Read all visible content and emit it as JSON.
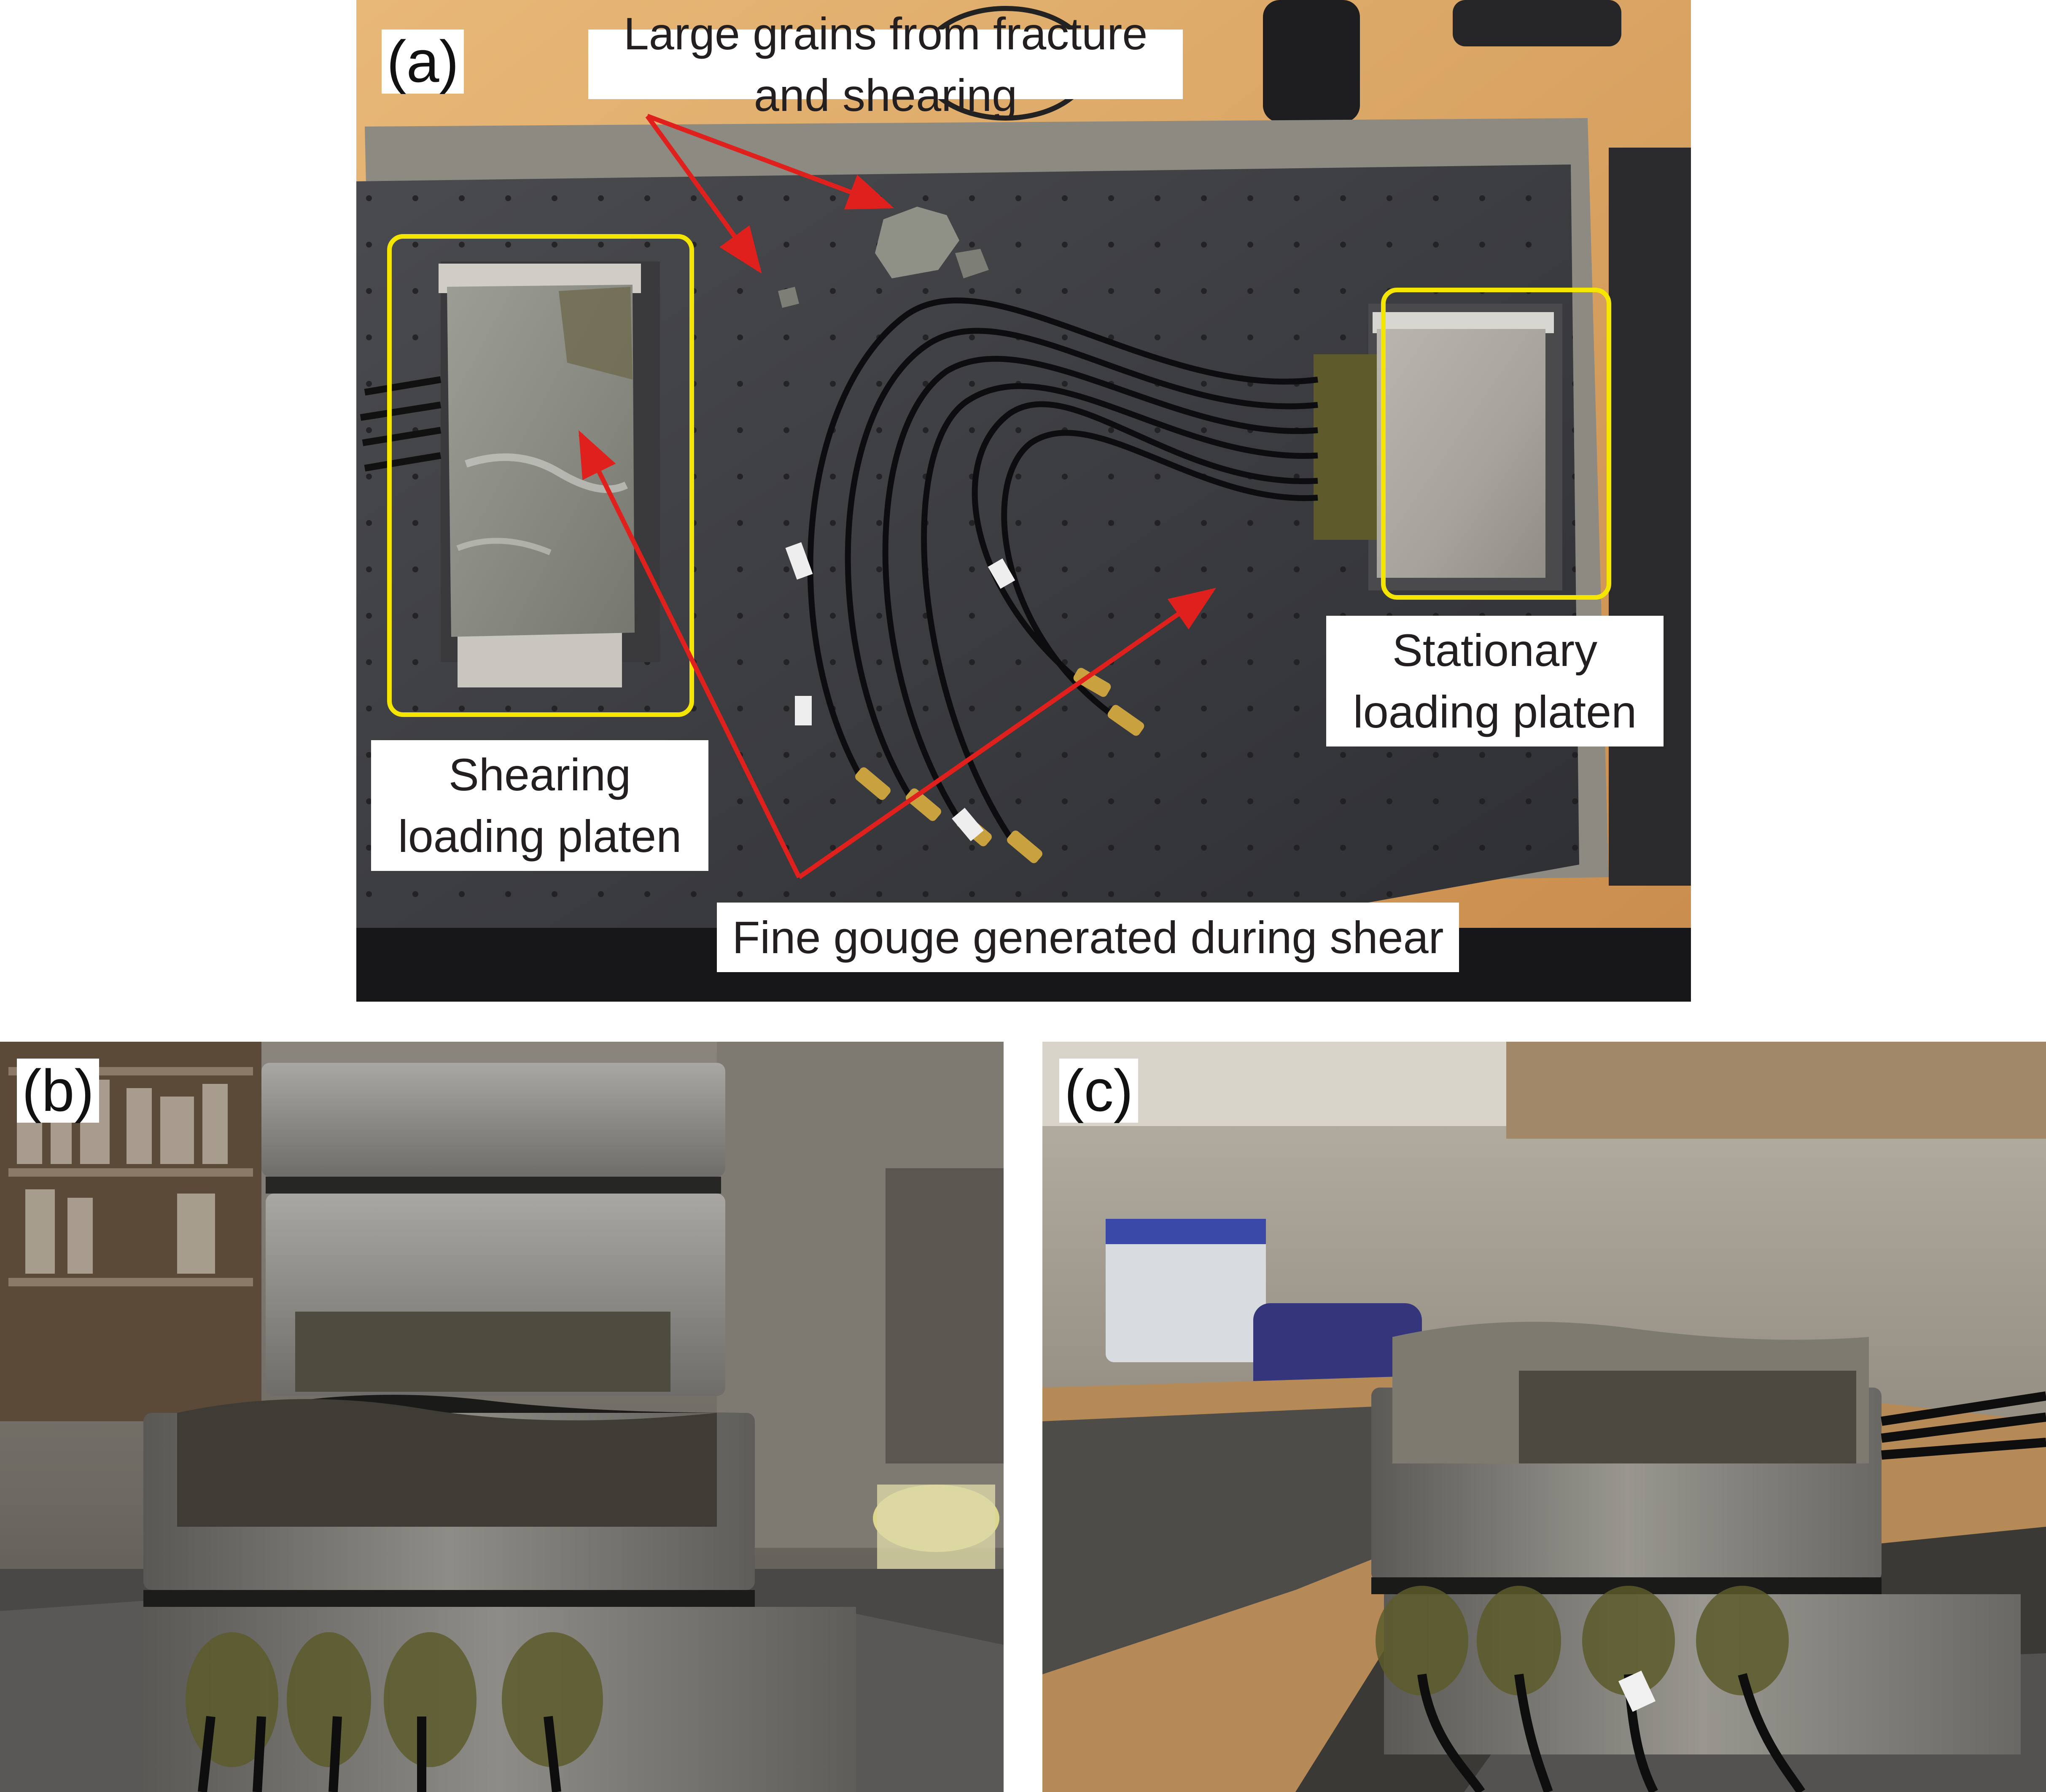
{
  "figure": {
    "panel_a": {
      "letter": "(a)",
      "labels": {
        "large_grains": "Large grains from fracture and shearing",
        "shearing_line1": "Shearing",
        "shearing_line2": "loading platen",
        "stationary_line1": "Stationary",
        "stationary_line2": "loading platen",
        "fine_gouge": "Fine gouge generated during shear"
      },
      "colors": {
        "arrow": "#e0201c",
        "highlight_box": "#f5e600"
      }
    },
    "panel_b": {
      "letter": "(b)"
    },
    "panel_c": {
      "letter": "(c)"
    }
  }
}
